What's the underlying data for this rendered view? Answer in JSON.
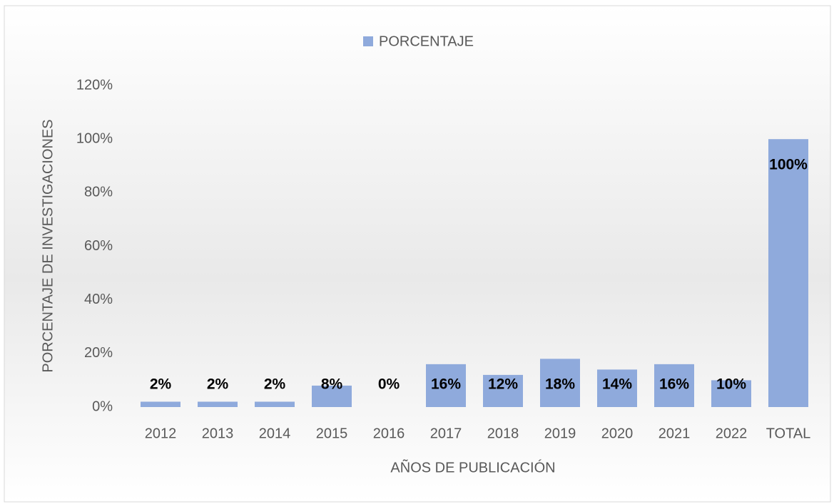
{
  "chart_data": {
    "type": "bar",
    "x_label": "AÑOS DE PUBLICACIÓN",
    "y_label": "PORCENTAJE DE INVESTIGACIONES",
    "categories": [
      "2012",
      "2013",
      "2014",
      "2015",
      "2016",
      "2017",
      "2018",
      "2019",
      "2020",
      "2021",
      "2022",
      "TOTAL"
    ],
    "series": [
      {
        "name": "PORCENTAJE",
        "color": "#8faadc",
        "values": [
          2,
          2,
          2,
          8,
          0,
          16,
          12,
          18,
          14,
          16,
          10,
          100
        ],
        "value_labels": [
          "2%",
          "2%",
          "2%",
          "8%",
          "0%",
          "16%",
          "12%",
          "18%",
          "14%",
          "16%",
          "10%",
          "100%"
        ]
      }
    ],
    "ylim": [
      0,
      120
    ],
    "yticks": [
      {
        "value": 0,
        "label": "0%"
      },
      {
        "value": 20,
        "label": "20%"
      },
      {
        "value": 40,
        "label": "40%"
      },
      {
        "value": 60,
        "label": "60%"
      },
      {
        "value": 80,
        "label": "80%"
      },
      {
        "value": 100,
        "label": "100%"
      },
      {
        "value": 120,
        "label": "120%"
      }
    ],
    "legend": "top"
  }
}
